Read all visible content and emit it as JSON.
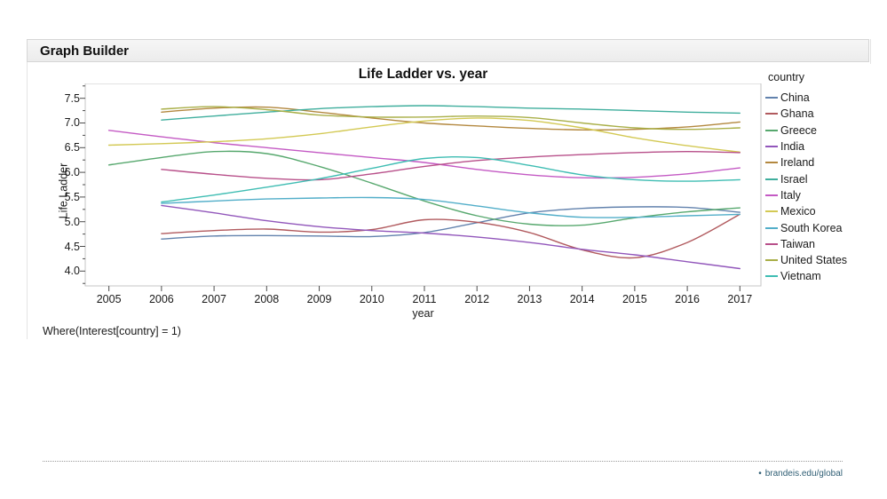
{
  "header": {
    "title": "Graph Builder"
  },
  "annotations": {
    "where_clause": "Where(Interest[country] = 1)"
  },
  "footer": {
    "bullet": "•",
    "link_label": "brandeis.edu/global"
  },
  "colors": {
    "frame_border": "#c6c6c6",
    "tick_color": "#4d4d4d",
    "text_color": "#1a1a1a",
    "header_bg": "#f0f0f0",
    "link_color": "#2f5e74"
  },
  "chart_data": {
    "type": "line",
    "title": "Life Ladder vs. year",
    "xlabel": "year",
    "ylabel": "Life Ladder",
    "legend_title": "country",
    "legend_position": "right",
    "grid": false,
    "xlim": [
      2004.55,
      2017.4
    ],
    "ylim": [
      3.7,
      7.8
    ],
    "x_ticks": [
      2005,
      2006,
      2007,
      2008,
      2009,
      2010,
      2011,
      2012,
      2013,
      2014,
      2015,
      2016,
      2017
    ],
    "y_ticks": [
      4.0,
      4.5,
      5.0,
      5.5,
      6.0,
      6.5,
      7.0,
      7.5
    ],
    "y_minor_step": 0.25,
    "series": [
      {
        "name": "China",
        "color": "#6282ad",
        "x": [
          2006,
          2007,
          2008,
          2009,
          2010,
          2011,
          2012,
          2013,
          2014,
          2015,
          2016,
          2017
        ],
        "y": [
          4.65,
          4.71,
          4.72,
          4.71,
          4.7,
          4.78,
          4.98,
          5.18,
          5.27,
          5.3,
          5.29,
          5.19
        ]
      },
      {
        "name": "Ghana",
        "color": "#b15a5e",
        "x": [
          2006,
          2007,
          2008,
          2009,
          2010,
          2011,
          2012,
          2013,
          2014,
          2015,
          2016,
          2017
        ],
        "y": [
          4.76,
          4.82,
          4.85,
          4.79,
          4.84,
          5.04,
          4.99,
          4.78,
          4.43,
          4.27,
          4.58,
          5.15
        ]
      },
      {
        "name": "Greece",
        "color": "#57a86e",
        "x": [
          2005,
          2006,
          2007,
          2008,
          2009,
          2010,
          2011,
          2012,
          2013,
          2014,
          2015,
          2016,
          2017
        ],
        "y": [
          6.15,
          6.3,
          6.42,
          6.38,
          6.12,
          5.78,
          5.42,
          5.12,
          4.95,
          4.93,
          5.08,
          5.2,
          5.28
        ]
      },
      {
        "name": "India",
        "color": "#9257bb",
        "x": [
          2006,
          2007,
          2008,
          2009,
          2010,
          2011,
          2012,
          2013,
          2014,
          2015,
          2016,
          2017
        ],
        "y": [
          5.33,
          5.18,
          5.02,
          4.9,
          4.82,
          4.77,
          4.69,
          4.58,
          4.44,
          4.33,
          4.19,
          4.05
        ]
      },
      {
        "name": "Ireland",
        "color": "#b3883f",
        "x": [
          2006,
          2007,
          2008,
          2009,
          2010,
          2011,
          2012,
          2013,
          2014,
          2015,
          2016,
          2017
        ],
        "y": [
          7.22,
          7.3,
          7.32,
          7.22,
          7.1,
          7.0,
          6.94,
          6.89,
          6.86,
          6.87,
          6.92,
          7.02
        ]
      },
      {
        "name": "Israel",
        "color": "#3fae9d",
        "x": [
          2006,
          2007,
          2008,
          2009,
          2010,
          2011,
          2012,
          2013,
          2014,
          2015,
          2016,
          2017
        ],
        "y": [
          7.06,
          7.14,
          7.22,
          7.29,
          7.33,
          7.35,
          7.33,
          7.3,
          7.28,
          7.25,
          7.22,
          7.2
        ]
      },
      {
        "name": "Italy",
        "color": "#c45ac4",
        "x": [
          2005,
          2006,
          2007,
          2008,
          2009,
          2010,
          2011,
          2012,
          2013,
          2014,
          2015,
          2016,
          2017
        ],
        "y": [
          6.85,
          6.72,
          6.6,
          6.5,
          6.4,
          6.3,
          6.2,
          6.06,
          5.95,
          5.89,
          5.9,
          5.97,
          6.09
        ]
      },
      {
        "name": "Mexico",
        "color": "#d3c954",
        "x": [
          2005,
          2006,
          2007,
          2008,
          2009,
          2010,
          2011,
          2012,
          2013,
          2014,
          2015,
          2016,
          2017
        ],
        "y": [
          6.55,
          6.58,
          6.62,
          6.68,
          6.78,
          6.92,
          7.04,
          7.1,
          7.05,
          6.9,
          6.7,
          6.54,
          6.41
        ]
      },
      {
        "name": "South Korea",
        "color": "#52aec9",
        "x": [
          2006,
          2007,
          2008,
          2009,
          2010,
          2011,
          2012,
          2013,
          2014,
          2015,
          2016,
          2017
        ],
        "y": [
          5.37,
          5.42,
          5.46,
          5.48,
          5.49,
          5.45,
          5.32,
          5.18,
          5.09,
          5.09,
          5.12,
          5.15
        ]
      },
      {
        "name": "Taiwan",
        "color": "#b8508a",
        "x": [
          2006,
          2007,
          2008,
          2009,
          2010,
          2011,
          2012,
          2013,
          2014,
          2015,
          2016,
          2017
        ],
        "y": [
          6.06,
          5.96,
          5.88,
          5.85,
          5.97,
          6.12,
          6.24,
          6.31,
          6.36,
          6.4,
          6.42,
          6.4
        ]
      },
      {
        "name": "United States",
        "color": "#a9af48",
        "x": [
          2006,
          2007,
          2008,
          2009,
          2010,
          2011,
          2012,
          2013,
          2014,
          2015,
          2016,
          2017
        ],
        "y": [
          7.28,
          7.33,
          7.27,
          7.16,
          7.12,
          7.12,
          7.14,
          7.11,
          7.0,
          6.9,
          6.87,
          6.9
        ]
      },
      {
        "name": "Vietnam",
        "color": "#3fbdb3",
        "x": [
          2006,
          2007,
          2008,
          2009,
          2010,
          2011,
          2012,
          2013,
          2014,
          2015,
          2016,
          2017
        ],
        "y": [
          5.4,
          5.54,
          5.7,
          5.87,
          6.08,
          6.28,
          6.3,
          6.14,
          5.95,
          5.85,
          5.82,
          5.85
        ]
      }
    ]
  }
}
